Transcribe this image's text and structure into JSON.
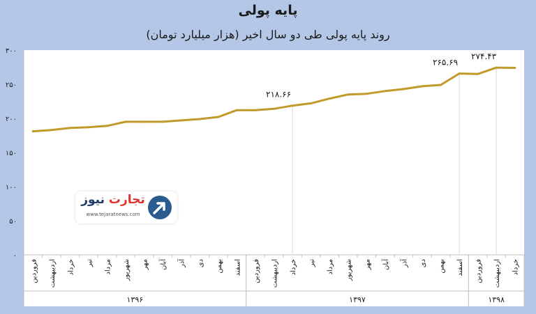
{
  "title": "پایه پولی",
  "subtitle": "روند پایه پولی طی دو سال اخیر (هزار میلیارد تومان)",
  "logo": {
    "name_part1": "تجارت",
    "name_part2": "نیوز",
    "url": "www.tejaratnews.com"
  },
  "colors": {
    "background": "#b4c7e7",
    "plot_background": "#ffffff",
    "line": "#c19a2a",
    "text": "#1a1a1a"
  },
  "chart_data": {
    "type": "line",
    "title": "پایه پولی",
    "subtitle": "روند پایه پولی طی دو سال اخیر (هزار میلیارد تومان)",
    "ylim": [
      0,
      300
    ],
    "yticks": [
      "۰",
      "۵۰",
      "۱۰۰",
      "۱۵۰",
      "۲۰۰",
      "۲۵۰",
      "۳۰۰"
    ],
    "ytick_values": [
      0,
      50,
      100,
      150,
      200,
      250,
      300
    ],
    "grid": false,
    "categories": [
      "فروردین",
      "اردیبهشت",
      "خرداد",
      "تیر",
      "مرداد",
      "شهریور",
      "مهر",
      "آبان",
      "آذر",
      "دی",
      "بهمن",
      "اسفند",
      "فروردین",
      "اردیبهشت",
      "خرداد",
      "تیر",
      "مرداد",
      "شهریور",
      "مهر",
      "آبان",
      "آذر",
      "دی",
      "بهمن",
      "اسفند",
      "فروردین",
      "اردیبهشت",
      "خرداد"
    ],
    "values": [
      181,
      183,
      186,
      187,
      189,
      195,
      195,
      195,
      197,
      199,
      202,
      212,
      212,
      214,
      218.66,
      222,
      229,
      235,
      236,
      240,
      243,
      247,
      249,
      265.69,
      265,
      274.43,
      274
    ],
    "year_groups": [
      {
        "label": "۱۳۹۶",
        "start": 0,
        "end": 11
      },
      {
        "label": "۱۳۹۷",
        "start": 12,
        "end": 23
      },
      {
        "label": "۱۳۹۸",
        "start": 24,
        "end": 26
      }
    ],
    "annotations": [
      {
        "index": 14,
        "label": "۲۱۸.۶۶"
      },
      {
        "index": 23,
        "label": "۲۶۵.۶۹"
      },
      {
        "index": 25,
        "label": "۲۷۴.۴۳"
      }
    ]
  }
}
